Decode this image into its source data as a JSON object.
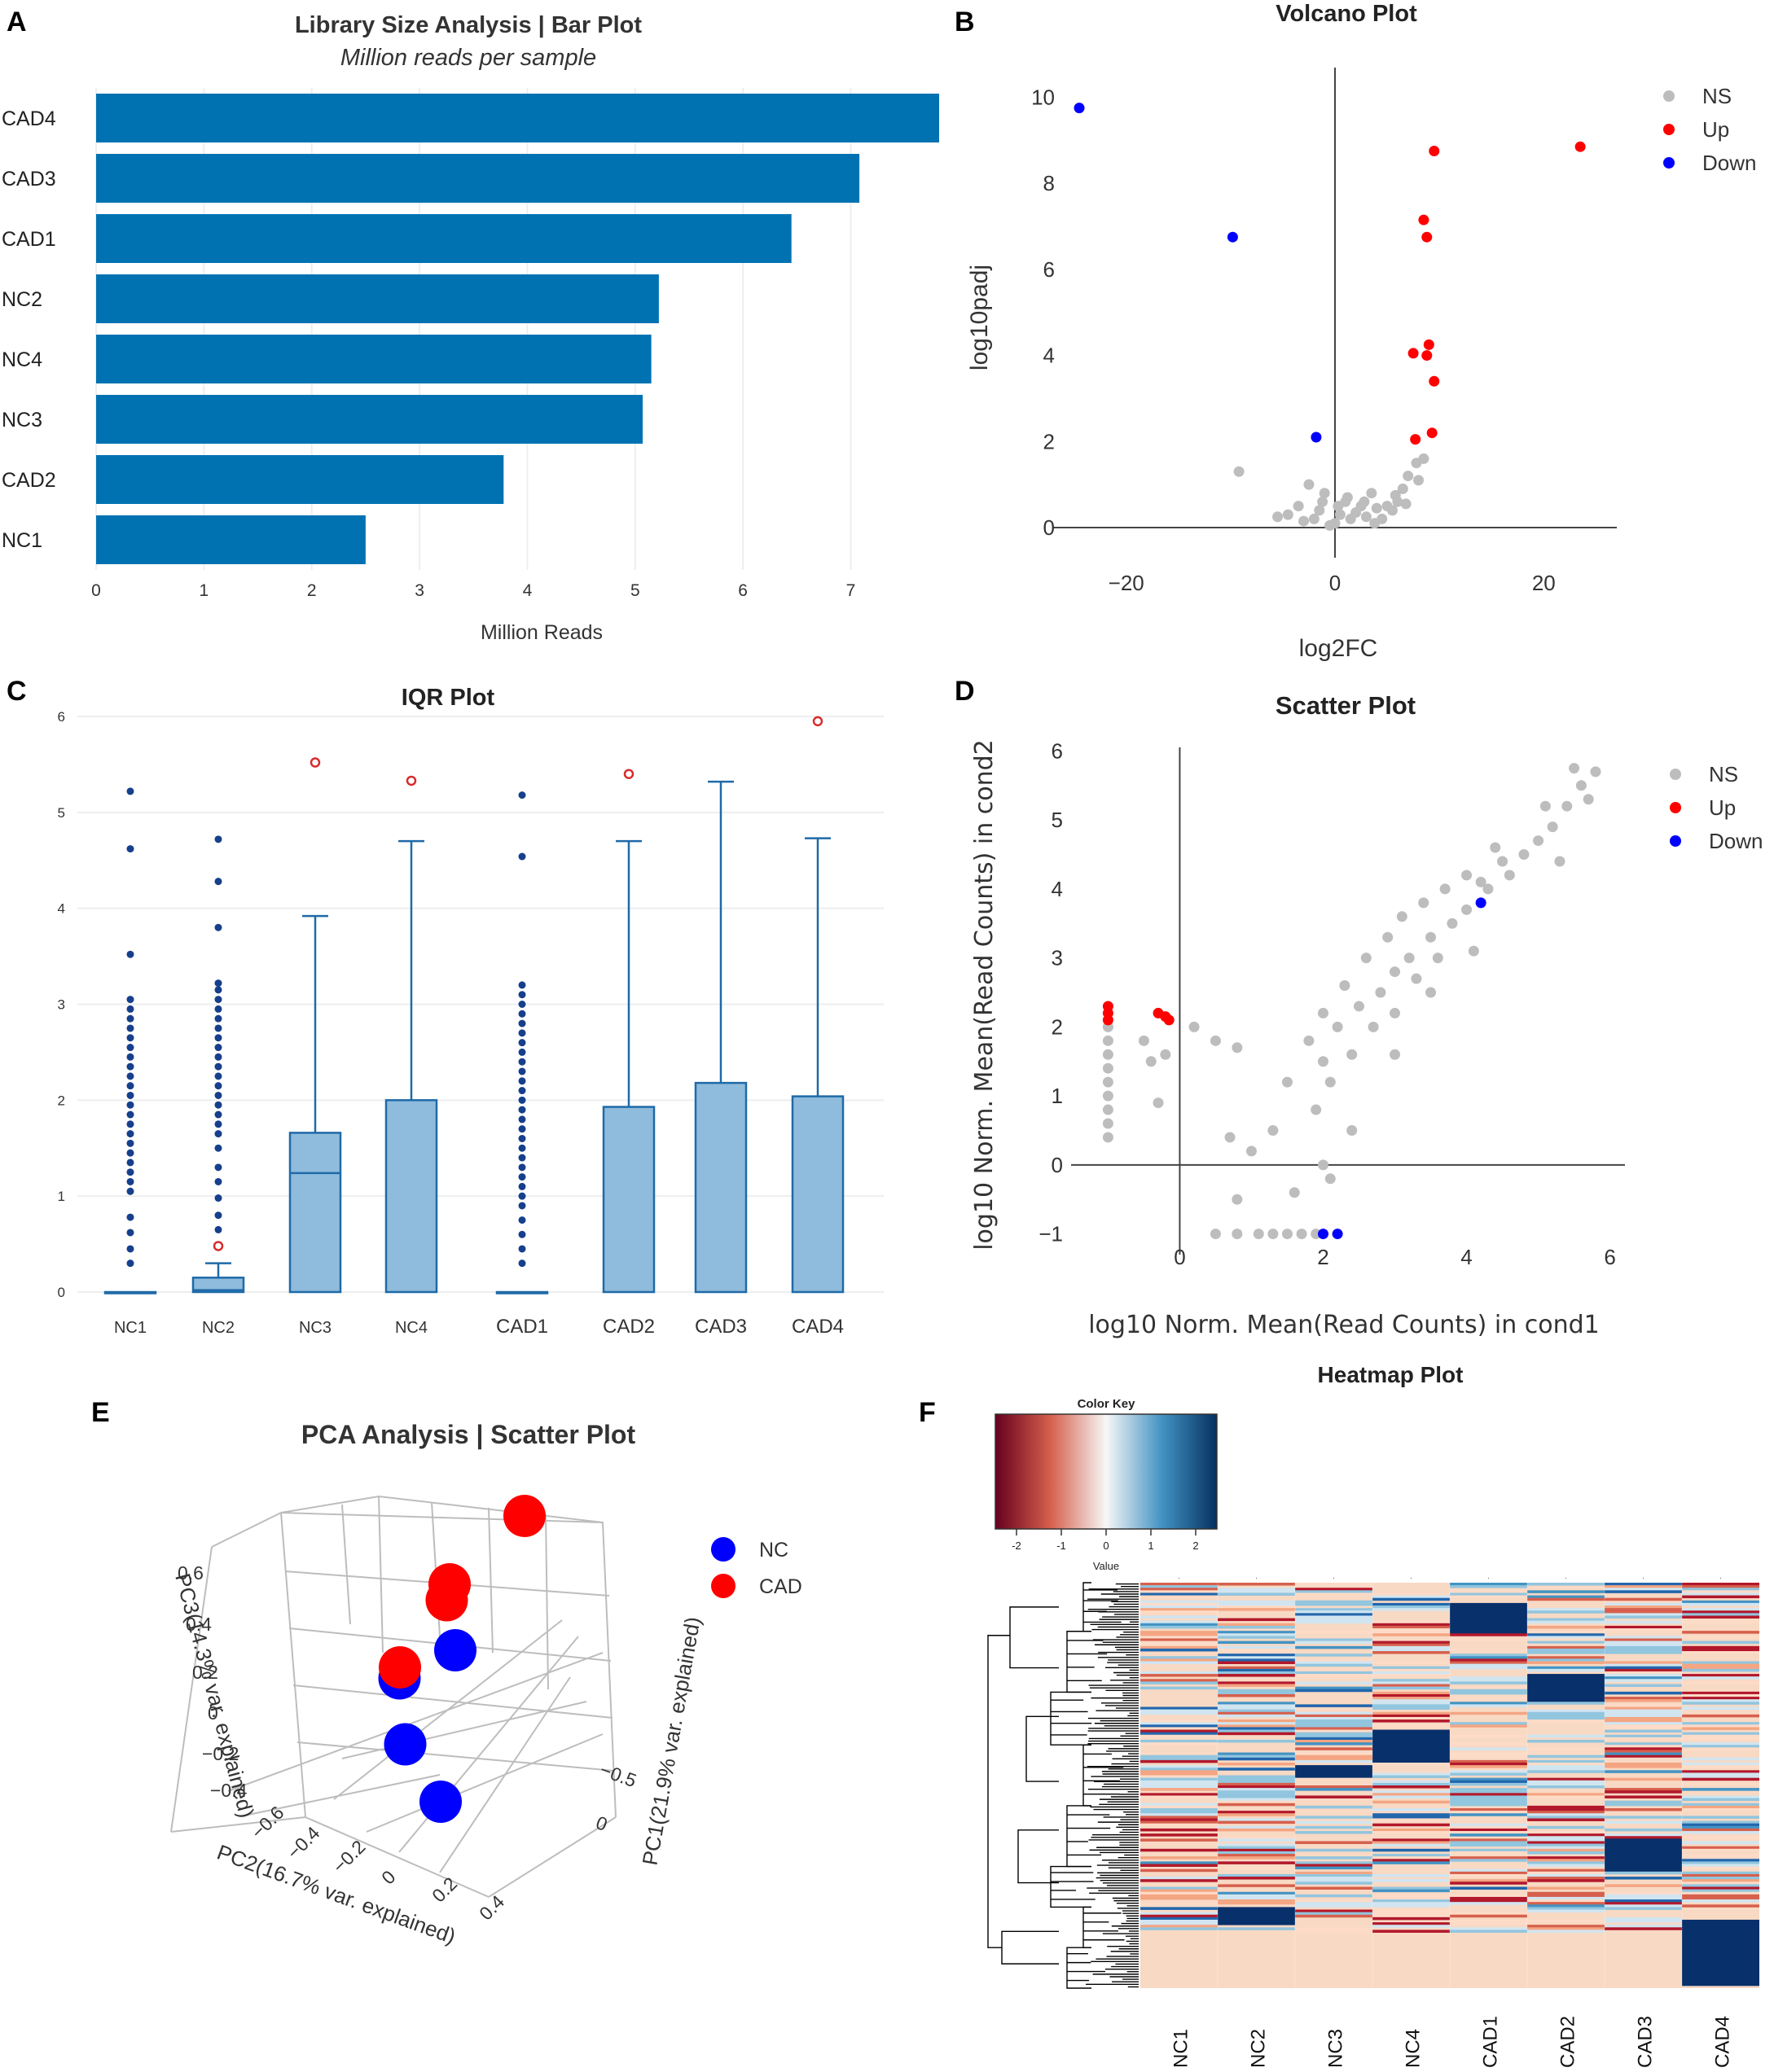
{
  "panels": {
    "A": {
      "letter": "A"
    },
    "B": {
      "letter": "B"
    },
    "C": {
      "letter": "C"
    },
    "D": {
      "letter": "D"
    },
    "E": {
      "letter": "E"
    },
    "F": {
      "letter": "F"
    }
  },
  "colors": {
    "bar": "#0072b2",
    "box_fill": "#8fbcdc",
    "box_stroke": "#1f6aa8",
    "outlier_blue": "#163f8c",
    "outlier_red": "#d92b2b",
    "ns": "#bdbdbd",
    "up": "#ff0000",
    "down": "#0000ff"
  },
  "chart_data": [
    {
      "id": "A",
      "type": "bar",
      "orientation": "horizontal",
      "title": "Library Size Analysis | Bar Plot",
      "subtitle": "Million reads per sample",
      "xlabel": "Million Reads",
      "ylabel": "",
      "xlim": [
        0,
        7.85
      ],
      "xticks": [
        0,
        1,
        2,
        3,
        4,
        5,
        6,
        7
      ],
      "categories": [
        "CAD4",
        "CAD3",
        "CAD1",
        "NC2",
        "NC4",
        "NC3",
        "CAD2",
        "NC1"
      ],
      "values": [
        7.82,
        7.08,
        6.45,
        5.22,
        5.15,
        5.07,
        3.78,
        2.5
      ]
    },
    {
      "id": "B",
      "type": "scatter",
      "title": "Volcano Plot",
      "xlabel": "log2FC",
      "ylabel": "log10padj",
      "xlim": [
        -27,
        27
      ],
      "ylim": [
        -0.7,
        10.5
      ],
      "xticks": [
        -20,
        0,
        20
      ],
      "yticks": [
        0,
        2,
        4,
        6,
        8,
        10
      ],
      "legend": [
        "NS",
        "Up",
        "Down"
      ],
      "series": [
        {
          "name": "Up",
          "points": [
            [
              9.5,
              8.75
            ],
            [
              23.5,
              8.85
            ],
            [
              8.5,
              7.15
            ],
            [
              8.8,
              6.75
            ],
            [
              7.5,
              4.05
            ],
            [
              9.0,
              4.25
            ],
            [
              8.8,
              4.0
            ],
            [
              9.5,
              3.4
            ],
            [
              9.3,
              2.2
            ],
            [
              7.7,
              2.05
            ]
          ]
        },
        {
          "name": "Down",
          "points": [
            [
              -24.5,
              9.75
            ],
            [
              -9.8,
              6.75
            ],
            [
              -1.8,
              2.1
            ]
          ]
        },
        {
          "name": "NS",
          "points": [
            [
              -9.2,
              1.3
            ],
            [
              -2.5,
              1.0
            ],
            [
              -1.0,
              0.8
            ],
            [
              1.0,
              0.6
            ],
            [
              2.5,
              0.5
            ],
            [
              3.5,
              0.8
            ],
            [
              5.0,
              0.5
            ],
            [
              6.5,
              0.9
            ],
            [
              7.0,
              1.2
            ],
            [
              8.0,
              1.1
            ],
            [
              8.5,
              1.6
            ],
            [
              7.8,
              1.5
            ],
            [
              -4.5,
              0.3
            ],
            [
              -3.5,
              0.5
            ],
            [
              -2.0,
              0.2
            ],
            [
              -1.5,
              0.4
            ],
            [
              0.0,
              0.1
            ],
            [
              0.5,
              0.3
            ],
            [
              1.5,
              0.2
            ],
            [
              2.0,
              0.35
            ],
            [
              3.0,
              0.25
            ],
            [
              4.0,
              0.45
            ],
            [
              4.5,
              0.2
            ],
            [
              5.5,
              0.4
            ],
            [
              6.0,
              0.6
            ],
            [
              -3.0,
              0.15
            ],
            [
              -0.5,
              0.05
            ],
            [
              1.2,
              0.7
            ],
            [
              2.8,
              0.6
            ],
            [
              -5.5,
              0.25
            ],
            [
              5.8,
              0.75
            ],
            [
              6.8,
              0.55
            ],
            [
              0.3,
              0.5
            ],
            [
              -1.2,
              0.6
            ],
            [
              3.8,
              0.1
            ]
          ]
        }
      ]
    },
    {
      "id": "C",
      "type": "box",
      "title": "IQR Plot",
      "xlabel": "",
      "ylabel": "",
      "ylim": [
        0,
        6.2
      ],
      "yticks": [
        0,
        1,
        2,
        3,
        4,
        5,
        6
      ],
      "categories": [
        "NC1",
        "NC2",
        "NC3",
        "NC4",
        "CAD1",
        "CAD2",
        "CAD3",
        "CAD4"
      ],
      "boxes": [
        {
          "q1": 0,
          "median": 0,
          "q3": 0,
          "whisker_low": 0,
          "whisker_high": 0
        },
        {
          "q1": 0,
          "median": 0.02,
          "q3": 0.15,
          "whisker_low": 0,
          "whisker_high": 0.3
        },
        {
          "q1": 0,
          "median": 1.24,
          "q3": 1.66,
          "whisker_low": 0,
          "whisker_high": 3.92
        },
        {
          "q1": 0,
          "median": 0,
          "q3": 2.0,
          "whisker_low": 0,
          "whisker_high": 4.7
        },
        {
          "q1": 0,
          "median": 0,
          "q3": 0,
          "whisker_low": 0,
          "whisker_high": 0
        },
        {
          "q1": 0,
          "median": 0,
          "q3": 1.93,
          "whisker_low": 0,
          "whisker_high": 4.7
        },
        {
          "q1": 0,
          "median": 0,
          "q3": 2.18,
          "whisker_low": 0,
          "whisker_high": 5.32
        },
        {
          "q1": 0,
          "median": 0,
          "q3": 2.04,
          "whisker_low": 0,
          "whisker_high": 4.73
        }
      ],
      "outliers_blue": [
        [
          0,
          5.22
        ],
        [
          0,
          4.62
        ],
        [
          0,
          3.52
        ],
        [
          0,
          3.05
        ],
        [
          0,
          2.95
        ],
        [
          0,
          2.85
        ],
        [
          0,
          2.75
        ],
        [
          0,
          2.65
        ],
        [
          0,
          2.55
        ],
        [
          0,
          2.45
        ],
        [
          0,
          2.35
        ],
        [
          0,
          2.25
        ],
        [
          0,
          2.15
        ],
        [
          0,
          2.05
        ],
        [
          0,
          1.95
        ],
        [
          0,
          1.85
        ],
        [
          0,
          1.75
        ],
        [
          0,
          1.65
        ],
        [
          0,
          1.55
        ],
        [
          0,
          1.45
        ],
        [
          0,
          1.35
        ],
        [
          0,
          1.25
        ],
        [
          0,
          1.15
        ],
        [
          0,
          1.05
        ],
        [
          0,
          0.78
        ],
        [
          0,
          0.62
        ],
        [
          0,
          0.45
        ],
        [
          0,
          0.3
        ],
        [
          1,
          4.72
        ],
        [
          1,
          4.28
        ],
        [
          1,
          3.8
        ],
        [
          1,
          3.22
        ],
        [
          1,
          3.15
        ],
        [
          1,
          3.05
        ],
        [
          1,
          2.95
        ],
        [
          1,
          2.85
        ],
        [
          1,
          2.75
        ],
        [
          1,
          2.65
        ],
        [
          1,
          2.55
        ],
        [
          1,
          2.45
        ],
        [
          1,
          2.35
        ],
        [
          1,
          2.25
        ],
        [
          1,
          2.15
        ],
        [
          1,
          2.05
        ],
        [
          1,
          1.95
        ],
        [
          1,
          1.85
        ],
        [
          1,
          1.75
        ],
        [
          1,
          1.65
        ],
        [
          1,
          1.5
        ],
        [
          1,
          1.3
        ],
        [
          1,
          1.15
        ],
        [
          1,
          0.98
        ],
        [
          1,
          0.8
        ],
        [
          1,
          0.65
        ],
        [
          4,
          5.18
        ],
        [
          4,
          4.54
        ],
        [
          4,
          3.2
        ],
        [
          4,
          3.1
        ],
        [
          4,
          3.0
        ],
        [
          4,
          2.9
        ],
        [
          4,
          2.8
        ],
        [
          4,
          2.7
        ],
        [
          4,
          2.6
        ],
        [
          4,
          2.5
        ],
        [
          4,
          2.4
        ],
        [
          4,
          2.3
        ],
        [
          4,
          2.2
        ],
        [
          4,
          2.1
        ],
        [
          4,
          2.0
        ],
        [
          4,
          1.9
        ],
        [
          4,
          1.8
        ],
        [
          4,
          1.7
        ],
        [
          4,
          1.6
        ],
        [
          4,
          1.5
        ],
        [
          4,
          1.4
        ],
        [
          4,
          1.3
        ],
        [
          4,
          1.2
        ],
        [
          4,
          1.1
        ],
        [
          4,
          1.0
        ],
        [
          4,
          0.9
        ],
        [
          4,
          0.75
        ],
        [
          4,
          0.6
        ],
        [
          4,
          0.45
        ],
        [
          4,
          0.3
        ]
      ],
      "outliers_red": [
        [
          1,
          0.48
        ],
        [
          2,
          5.52
        ],
        [
          3,
          5.33
        ],
        [
          5,
          5.4
        ],
        [
          7,
          5.95
        ]
      ]
    },
    {
      "id": "D",
      "type": "scatter",
      "title": "Scatter Plot",
      "xlabel": "log10 Norm. Mean(Read Counts) in cond1",
      "ylabel": "log10 Norm. Mean(Read Counts) in cond2",
      "xlim": [
        -1.3,
        6.3
      ],
      "ylim": [
        -1.3,
        6.3
      ],
      "xticks": [
        0,
        2,
        4,
        6
      ],
      "yticks": [
        -1,
        0,
        1,
        2,
        3,
        4,
        5,
        6
      ],
      "legend": [
        "NS",
        "Up",
        "Down"
      ],
      "series": [
        {
          "name": "Up",
          "points": [
            [
              -1.0,
              2.3
            ],
            [
              -1.0,
              2.2
            ],
            [
              -1.0,
              2.1
            ],
            [
              -0.3,
              2.2
            ],
            [
              -0.2,
              2.15
            ],
            [
              -0.15,
              2.1
            ]
          ]
        },
        {
          "name": "Down",
          "points": [
            [
              4.2,
              3.8
            ],
            [
              2.0,
              -1.0
            ],
            [
              2.2,
              -1.0
            ]
          ]
        },
        {
          "name": "NS",
          "points": [
            [
              -1.0,
              2.0
            ],
            [
              -1.0,
              1.8
            ],
            [
              -1.0,
              1.6
            ],
            [
              -1.0,
              1.4
            ],
            [
              -1.0,
              1.2
            ],
            [
              -1.0,
              1.0
            ],
            [
              -1.0,
              0.8
            ],
            [
              -1.0,
              0.6
            ],
            [
              -1.0,
              0.4
            ],
            [
              -0.5,
              1.8
            ],
            [
              -0.4,
              1.5
            ],
            [
              -0.3,
              0.9
            ],
            [
              -0.2,
              1.6
            ],
            [
              0.2,
              2.0
            ],
            [
              0.5,
              1.8
            ],
            [
              0.8,
              1.7
            ],
            [
              0.7,
              0.4
            ],
            [
              1.0,
              0.2
            ],
            [
              1.3,
              0.5
            ],
            [
              1.6,
              -0.4
            ],
            [
              0.8,
              -0.5
            ],
            [
              1.5,
              1.2
            ],
            [
              2.0,
              1.5
            ],
            [
              2.2,
              2.0
            ],
            [
              2.5,
              2.3
            ],
            [
              2.8,
              2.5
            ],
            [
              3.0,
              2.8
            ],
            [
              3.2,
              3.0
            ],
            [
              3.5,
              3.3
            ],
            [
              3.8,
              3.5
            ],
            [
              4.0,
              3.7
            ],
            [
              4.3,
              4.0
            ],
            [
              4.6,
              4.2
            ],
            [
              4.8,
              4.5
            ],
            [
              5.0,
              4.7
            ],
            [
              5.2,
              4.9
            ],
            [
              5.4,
              5.2
            ],
            [
              5.6,
              5.5
            ],
            [
              5.8,
              5.7
            ],
            [
              5.5,
              5.75
            ],
            [
              5.1,
              5.2
            ],
            [
              4.5,
              4.4
            ],
            [
              4.2,
              4.1
            ],
            [
              3.6,
              3.0
            ],
            [
              3.3,
              2.7
            ],
            [
              3.0,
              2.2
            ],
            [
              2.7,
              2.0
            ],
            [
              2.4,
              1.6
            ],
            [
              2.1,
              1.2
            ],
            [
              2.3,
              2.6
            ],
            [
              2.6,
              3.0
            ],
            [
              2.9,
              3.3
            ],
            [
              3.1,
              3.6
            ],
            [
              3.4,
              3.8
            ],
            [
              3.7,
              4.0
            ],
            [
              4.0,
              4.2
            ],
            [
              4.4,
              4.6
            ],
            [
              1.8,
              1.8
            ],
            [
              2.0,
              2.2
            ],
            [
              1.9,
              0.8
            ],
            [
              2.4,
              0.5
            ],
            [
              3.0,
              1.6
            ],
            [
              3.5,
              2.5
            ],
            [
              4.1,
              3.1
            ],
            [
              5.3,
              4.4
            ],
            [
              5.7,
              5.3
            ],
            [
              0.5,
              -1.0
            ],
            [
              0.8,
              -1.0
            ],
            [
              1.1,
              -1.0
            ],
            [
              1.3,
              -1.0
            ],
            [
              1.5,
              -1.0
            ],
            [
              1.7,
              -1.0
            ],
            [
              1.9,
              -1.0
            ],
            [
              2.1,
              -0.2
            ],
            [
              2.0,
              0.0
            ]
          ]
        }
      ]
    },
    {
      "id": "E",
      "type": "scatter3d",
      "title": "PCA Analysis | Scatter Plot",
      "x_axis_label": "PC1(21.9% var. explained)",
      "y_axis_label": "PC2(16.7% var. explained)",
      "z_axis_label": "PC3(14.3% var. explained)",
      "z_ticks": [
        "−0.4",
        "−0.2",
        "0",
        "0.2",
        "0.4",
        "0.6"
      ],
      "y_ticks": [
        "−0.6",
        "−0.4",
        "−0.2",
        "0",
        "0.2",
        "0.4"
      ],
      "x_ticks": [
        "−0.5",
        "0"
      ],
      "legend": [
        "NC",
        "CAD"
      ],
      "series": [
        {
          "name": "NC",
          "color": "#0000ff",
          "points": [
            [
              0.1,
              0.05,
              0.05
            ],
            [
              -0.1,
              0.1,
              0.1
            ],
            [
              0.2,
              0.15,
              -0.15
            ],
            [
              0.35,
              0.4,
              -0.25
            ]
          ]
        },
        {
          "name": "CAD",
          "color": "#ff0000",
          "points": [
            [
              -0.3,
              0.2,
              0.6
            ],
            [
              -0.2,
              0.0,
              0.3
            ],
            [
              -0.25,
              -0.05,
              0.2
            ],
            [
              -0.6,
              -0.5,
              -0.35
            ]
          ]
        }
      ]
    },
    {
      "id": "F",
      "type": "heatmap",
      "title": "Heatmap Plot",
      "color_key_title": "Color Key",
      "color_key_label": "Value",
      "color_key_ticks": [
        "-2",
        "-1",
        "0",
        "1",
        "2"
      ],
      "columns": [
        "NC1",
        "NC2",
        "NC3",
        "NC4",
        "CAD1",
        "CAD2",
        "CAD3",
        "CAD4"
      ]
    }
  ]
}
